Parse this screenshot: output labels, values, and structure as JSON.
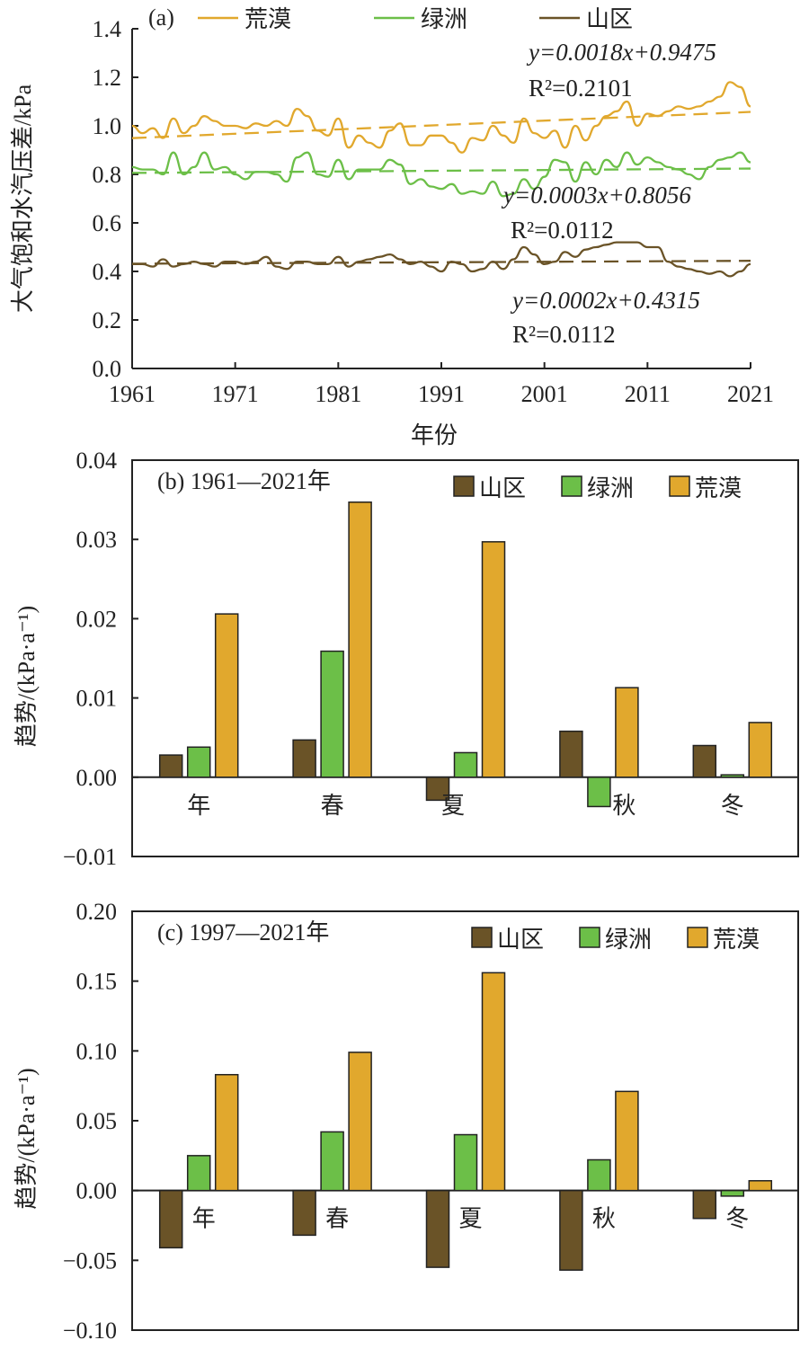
{
  "colors": {
    "desert": "#E1A82D",
    "oasis": "#6CBF48",
    "mountain": "#6A5327"
  },
  "chart_data": [
    {
      "type": "line",
      "panel_label": "(a)",
      "xlabel": "年份",
      "ylabel": "大气饱和水汽压差/kPa",
      "xlim": [
        1961,
        2021
      ],
      "ylim": [
        0,
        1.4
      ],
      "xticks": [
        "1961",
        "1971",
        "1981",
        "1991",
        "2001",
        "2011",
        "2021"
      ],
      "yticks": [
        "0.0",
        "0.2",
        "0.4",
        "0.6",
        "0.8",
        "1.0",
        "1.2",
        "1.4"
      ],
      "legend": [
        "荒漠",
        "绿洲",
        "山区"
      ],
      "series": [
        {
          "name": "荒漠",
          "key": "desert",
          "values": [
            1.0,
            0.97,
            0.99,
            0.95,
            1.03,
            0.97,
            1.0,
            1.04,
            1.02,
            1.0,
            1.0,
            0.99,
            1.01,
            1.0,
            1.02,
            1.0,
            1.07,
            1.04,
            0.98,
            0.96,
            1.03,
            0.91,
            0.96,
            0.93,
            0.91,
            0.98,
            1.01,
            0.92,
            0.92,
            0.96,
            0.96,
            0.93,
            0.89,
            0.95,
            0.94,
            1.0,
            0.96,
            0.93,
            1.03,
            0.97,
            0.95,
            0.98,
            0.91,
            1.0,
            0.94,
            1.0,
            1.04,
            1.06,
            1.1,
            1.0,
            1.05,
            1.04,
            1.06,
            1.08,
            1.07,
            1.08,
            1.1,
            1.12,
            1.18,
            1.16,
            1.08
          ],
          "trend": {
            "slope": 0.0018,
            "intercept": 0.9475,
            "equation": "y=0.0018x+0.9475",
            "r2": "R²=0.2101"
          }
        },
        {
          "name": "绿洲",
          "key": "oasis",
          "values": [
            0.83,
            0.82,
            0.82,
            0.8,
            0.89,
            0.8,
            0.83,
            0.89,
            0.82,
            0.83,
            0.8,
            0.78,
            0.81,
            0.81,
            0.8,
            0.77,
            0.87,
            0.89,
            0.8,
            0.79,
            0.86,
            0.78,
            0.82,
            0.82,
            0.82,
            0.86,
            0.84,
            0.76,
            0.78,
            0.75,
            0.74,
            0.76,
            0.72,
            0.73,
            0.72,
            0.77,
            0.71,
            0.72,
            0.78,
            0.74,
            0.79,
            0.86,
            0.85,
            0.77,
            0.85,
            0.8,
            0.86,
            0.83,
            0.89,
            0.84,
            0.87,
            0.85,
            0.83,
            0.82,
            0.8,
            0.78,
            0.83,
            0.86,
            0.87,
            0.89,
            0.85
          ],
          "trend": {
            "slope": 0.0003,
            "intercept": 0.8056,
            "equation": "y=0.0003x+0.8056",
            "r2": "R²=0.0112"
          }
        },
        {
          "name": "山区",
          "key": "mountain",
          "values": [
            0.43,
            0.43,
            0.42,
            0.45,
            0.42,
            0.43,
            0.44,
            0.43,
            0.42,
            0.44,
            0.44,
            0.43,
            0.44,
            0.46,
            0.42,
            0.41,
            0.44,
            0.44,
            0.43,
            0.43,
            0.46,
            0.42,
            0.44,
            0.45,
            0.46,
            0.47,
            0.45,
            0.43,
            0.44,
            0.42,
            0.4,
            0.44,
            0.43,
            0.4,
            0.41,
            0.44,
            0.41,
            0.45,
            0.5,
            0.47,
            0.43,
            0.44,
            0.48,
            0.46,
            0.49,
            0.5,
            0.51,
            0.52,
            0.52,
            0.52,
            0.5,
            0.5,
            0.44,
            0.42,
            0.41,
            0.4,
            0.39,
            0.4,
            0.38,
            0.4,
            0.43
          ],
          "trend": {
            "slope": 0.0002,
            "intercept": 0.4315,
            "equation": "y=0.0002x+0.4315",
            "r2": "R²=0.0112"
          }
        }
      ]
    },
    {
      "type": "bar",
      "panel_label": "(b) 1961—2021年",
      "ylabel": "趋势/(kPa·a⁻¹)",
      "ylim": [
        -0.01,
        0.04
      ],
      "yticks": [
        "−0.01",
        "0.00",
        "0.01",
        "0.02",
        "0.03",
        "0.04"
      ],
      "ytick_values": [
        -0.01,
        0,
        0.01,
        0.02,
        0.03,
        0.04
      ],
      "categories": [
        "年",
        "春",
        "夏",
        "秋",
        "冬"
      ],
      "series": [
        {
          "name": "山区",
          "key": "mountain_bar",
          "values": [
            0.0028,
            0.0047,
            -0.0029,
            0.0058,
            0.004
          ]
        },
        {
          "name": "绿洲",
          "key": "oasis_bar",
          "values": [
            0.0038,
            0.0159,
            0.0031,
            -0.0037,
            0.0003
          ]
        },
        {
          "name": "荒漠",
          "key": "desert_bar",
          "values": [
            0.0206,
            0.0347,
            0.0297,
            0.0113,
            0.0069
          ]
        }
      ]
    },
    {
      "type": "bar",
      "panel_label": "(c) 1997—2021年",
      "ylabel": "趋势/(kPa·a⁻¹)",
      "ylim": [
        -0.1,
        0.2
      ],
      "yticks": [
        "−0.10",
        "−0.05",
        "0.00",
        "0.05",
        "0.10",
        "0.15",
        "0.20"
      ],
      "ytick_values": [
        -0.1,
        -0.05,
        0,
        0.05,
        0.1,
        0.15,
        0.2
      ],
      "categories": [
        "年",
        "春",
        "夏",
        "秋",
        "冬"
      ],
      "series": [
        {
          "name": "山区",
          "key": "mountain_bar",
          "values": [
            -0.041,
            -0.032,
            -0.055,
            -0.057,
            -0.02
          ]
        },
        {
          "name": "绿洲",
          "key": "oasis_bar",
          "values": [
            0.025,
            0.042,
            0.04,
            0.022,
            -0.004
          ]
        },
        {
          "name": "荒漠",
          "key": "desert_bar",
          "values": [
            0.083,
            0.099,
            0.156,
            0.071,
            0.007
          ]
        }
      ]
    }
  ]
}
